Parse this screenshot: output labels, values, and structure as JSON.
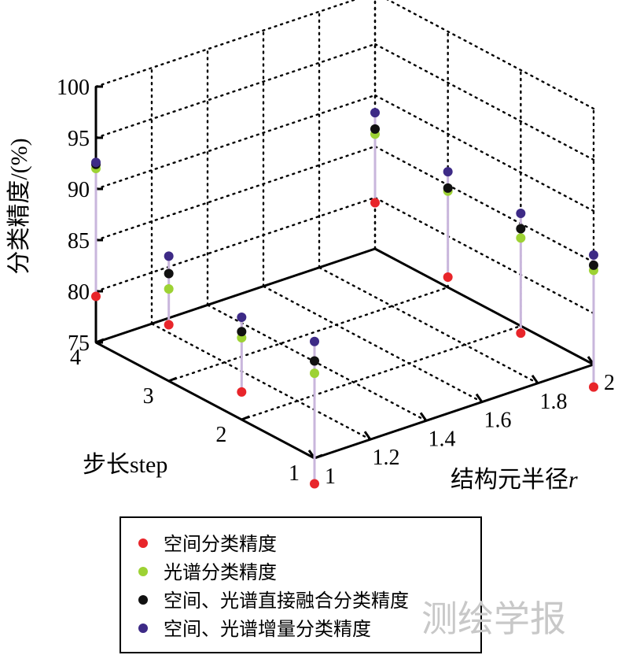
{
  "chart_data": {
    "type": "scatter",
    "projection": "3d",
    "x_axis": {
      "label": "结构元半径",
      "label_italic": "r",
      "ticks": [
        "1",
        "1.2",
        "1.4",
        "1.6",
        "1.8",
        "2"
      ],
      "range": [
        1,
        2
      ]
    },
    "y_axis": {
      "label": "步长step",
      "ticks": [
        "1",
        "2",
        "3",
        "4"
      ],
      "range": [
        1,
        4
      ]
    },
    "z_axis": {
      "label": "分类精度/(%)",
      "ticks": [
        "75",
        "80",
        "85",
        "90",
        "95",
        "100"
      ],
      "range": [
        75,
        100
      ]
    },
    "grid": true,
    "legend_position": "bottom",
    "stem_color": "#c9b6dc",
    "series": [
      {
        "name": "空间分类精度",
        "color": "#e8252a"
      },
      {
        "name": "光谱分类精度",
        "color": "#9dd234"
      },
      {
        "name": "空间、光谱直接融合分类精度",
        "color": "#111111"
      },
      {
        "name": "空间、光谱增量分类精度",
        "color": "#3d2a86"
      }
    ],
    "points": [
      {
        "r": 1,
        "step": 4,
        "values": [
          79.5,
          92.0,
          92.4,
          92.6
        ]
      },
      {
        "r": 1,
        "step": 3,
        "values": [
          80.5,
          84.0,
          85.5,
          87.2
        ]
      },
      {
        "r": 1,
        "step": 2,
        "values": [
          77.7,
          83.0,
          83.6,
          85.0
        ]
      },
      {
        "r": 1,
        "step": 1,
        "values": [
          72.5,
          83.3,
          84.5,
          86.4
        ]
      },
      {
        "r": 2,
        "step": 4,
        "values": [
          79.5,
          86.2,
          86.7,
          88.3
        ]
      },
      {
        "r": 2,
        "step": 3,
        "values": [
          76.0,
          84.4,
          84.7,
          86.3
        ]
      },
      {
        "r": 2,
        "step": 2,
        "values": [
          74.3,
          83.6,
          84.5,
          86.0
        ]
      },
      {
        "r": 2,
        "step": 1,
        "values": [
          72.8,
          84.2,
          84.7,
          85.7
        ]
      }
    ]
  },
  "watermark": "测绘学报"
}
